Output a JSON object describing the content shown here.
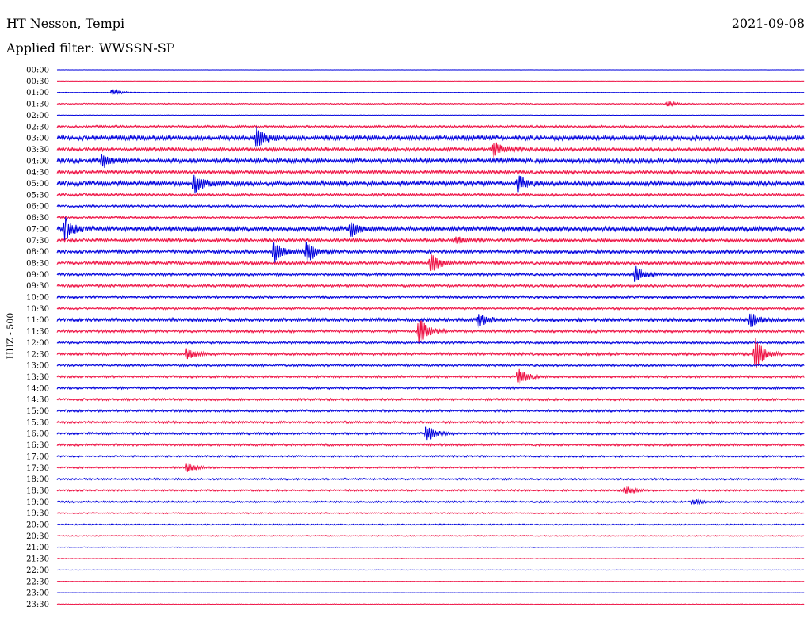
{
  "header": {
    "station": "HT Nesson, Tempi",
    "filter": "Applied filter: WWSSN-SP",
    "date": "2021-09-08"
  },
  "chart_data": {
    "type": "line",
    "title": "HT Nesson, Tempi",
    "subtitle": "Applied filter: WWSSN-SP",
    "date": "2021-09-08",
    "ylabel": "HHZ - 500",
    "xlabel": "",
    "colors": [
      "#0000dd",
      "#ee1144"
    ],
    "rows": [
      "00:00",
      "00:30",
      "01:00",
      "01:30",
      "02:00",
      "02:30",
      "03:00",
      "03:30",
      "04:00",
      "04:30",
      "05:00",
      "05:30",
      "06:00",
      "06:30",
      "07:00",
      "07:30",
      "08:00",
      "08:30",
      "09:00",
      "09:30",
      "10:00",
      "10:30",
      "11:00",
      "11:30",
      "12:00",
      "12:30",
      "13:00",
      "13:30",
      "14:00",
      "14:30",
      "15:00",
      "15:30",
      "16:00",
      "16:30",
      "17:00",
      "17:30",
      "18:00",
      "18:30",
      "19:00",
      "19:30",
      "20:00",
      "20:30",
      "21:00",
      "21:30",
      "22:00",
      "22:30",
      "23:00",
      "23:30"
    ],
    "row_window_minutes": 30,
    "noise_level": [
      0.1,
      0.1,
      0.2,
      0.5,
      0.2,
      1,
      2,
      1.5,
      2,
      1.5,
      2,
      1.2,
      1,
      1,
      2,
      1.5,
      1.5,
      1.5,
      1.2,
      1.2,
      1.2,
      1,
      1.5,
      1.2,
      1,
      1.2,
      1,
      1,
      1,
      1,
      1,
      1,
      1,
      1,
      0.8,
      0.8,
      0.8,
      0.8,
      0.8,
      0.6,
      0.6,
      0.5,
      0.3,
      0.3,
      0.2,
      0.2,
      0.1,
      0.3
    ],
    "events": [
      {
        "row": 2,
        "minute": 2.2,
        "amp": 5
      },
      {
        "row": 3,
        "minute": 24.5,
        "amp": 4
      },
      {
        "row": 6,
        "minute": 8,
        "amp": 14
      },
      {
        "row": 7,
        "minute": 17.5,
        "amp": 12
      },
      {
        "row": 8,
        "minute": 1.8,
        "amp": 9
      },
      {
        "row": 10,
        "minute": 5.5,
        "amp": 14
      },
      {
        "row": 10,
        "minute": 18.5,
        "amp": 10
      },
      {
        "row": 14,
        "minute": 0.3,
        "amp": 16
      },
      {
        "row": 14,
        "minute": 11.8,
        "amp": 10
      },
      {
        "row": 15,
        "minute": 16,
        "amp": 5
      },
      {
        "row": 16,
        "minute": 8.7,
        "amp": 16
      },
      {
        "row": 16,
        "minute": 10,
        "amp": 18
      },
      {
        "row": 17,
        "minute": 15,
        "amp": 14
      },
      {
        "row": 18,
        "minute": 23.2,
        "amp": 11
      },
      {
        "row": 22,
        "minute": 16.9,
        "amp": 10
      },
      {
        "row": 22,
        "minute": 27.8,
        "amp": 11
      },
      {
        "row": 23,
        "minute": 14.5,
        "amp": 20
      },
      {
        "row": 25,
        "minute": 5.2,
        "amp": 8
      },
      {
        "row": 25,
        "minute": 28,
        "amp": 22
      },
      {
        "row": 27,
        "minute": 18.5,
        "amp": 12
      },
      {
        "row": 32,
        "minute": 14.8,
        "amp": 12
      },
      {
        "row": 35,
        "minute": 5.2,
        "amp": 6
      },
      {
        "row": 37,
        "minute": 22.8,
        "amp": 6
      },
      {
        "row": 38,
        "minute": 25.5,
        "amp": 4
      }
    ]
  }
}
